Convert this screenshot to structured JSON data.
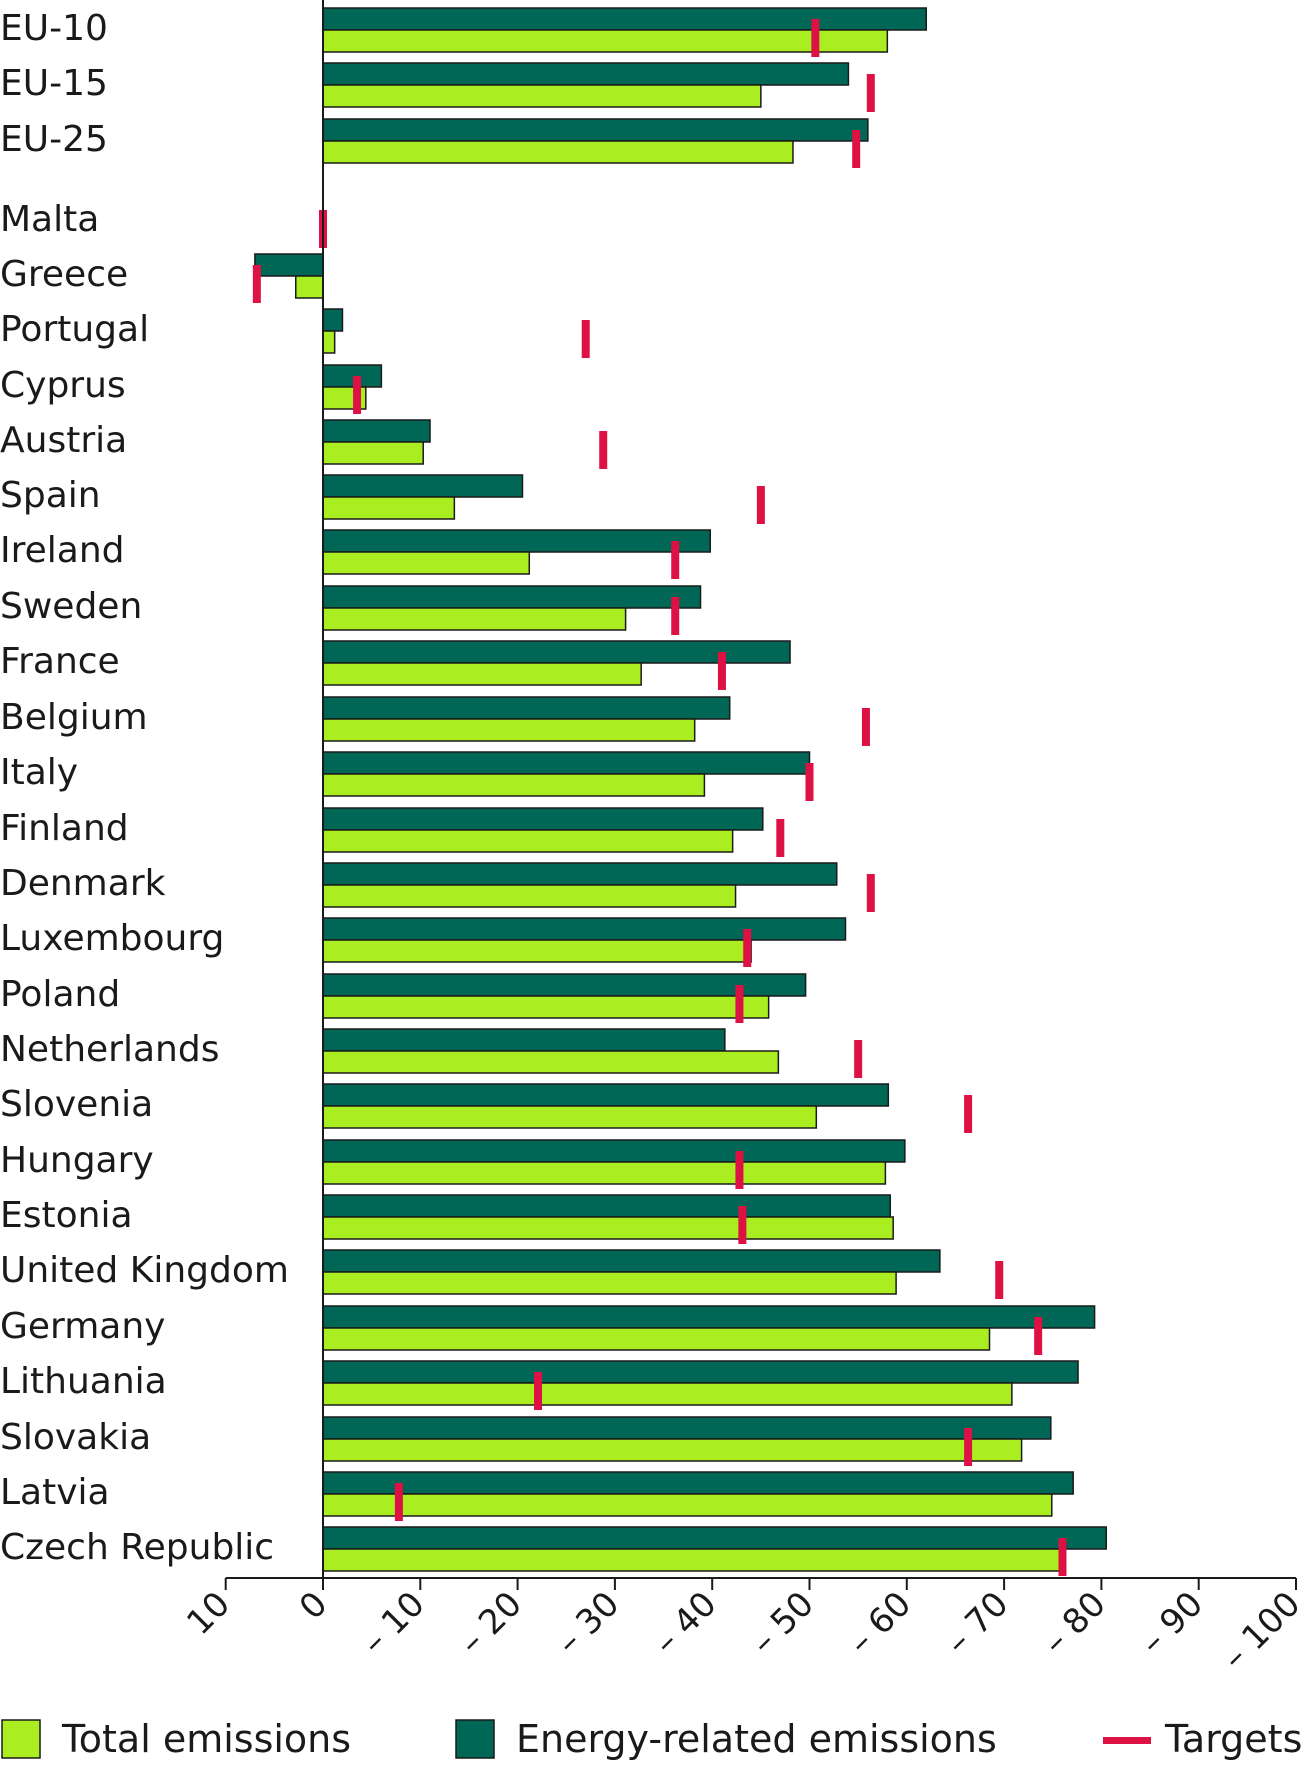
{
  "chart_data": {
    "type": "bar",
    "orientation": "horizontal",
    "x_axis_reversed": true,
    "xlim": [
      10,
      -100
    ],
    "ticks": [
      10,
      0,
      -10,
      -20,
      -30,
      -40,
      -50,
      -60,
      -70,
      -80,
      -90,
      -100
    ],
    "tick_labels": [
      "10",
      "0",
      "– 10",
      "– 20",
      "– 30",
      "– 40",
      "– 50",
      "– 60",
      "– 70",
      "– 80",
      "– 90",
      "– 100"
    ],
    "grid": false,
    "legend_position": "bottom",
    "categories": [
      "EU-10",
      "EU-15",
      "EU-25",
      "Malta",
      "Greece",
      "Portugal",
      "Cyprus",
      "Austria",
      "Spain",
      "Ireland",
      "Sweden",
      "France",
      "Belgium",
      "Italy",
      "Finland",
      "Denmark",
      "Luxembourg",
      "Poland",
      "Netherlands",
      "Slovenia",
      "Hungary",
      "Estonia",
      "United Kingdom",
      "Germany",
      "Lithuania",
      "Slovakia",
      "Latvia",
      "Czech Republic"
    ],
    "series": [
      {
        "name": "Energy-related emissions",
        "color": "#006655",
        "values": [
          -62,
          -54,
          -56,
          null,
          7,
          -2,
          -6,
          -11,
          -20.5,
          -39.8,
          -38.8,
          -48,
          -41.8,
          -50,
          -45.2,
          -52.8,
          -53.7,
          -49.6,
          -41.3,
          -58.1,
          -59.8,
          -58.3,
          -63.4,
          -79.3,
          -77.6,
          -74.8,
          -77.1,
          -80.5
        ]
      },
      {
        "name": "Total emissions",
        "color": "#aaee22",
        "values": [
          -58,
          -45,
          -48.3,
          null,
          2.8,
          -1.2,
          -4.4,
          -10.3,
          -13.5,
          -21.2,
          -31.1,
          -32.7,
          -38.2,
          -39.2,
          -42.1,
          -42.4,
          -44,
          -45.8,
          -46.8,
          -50.7,
          -57.8,
          -58.6,
          -58.9,
          -68.5,
          -70.8,
          -71.8,
          -74.9,
          -76.1
        ]
      }
    ],
    "targets": {
      "name": "Targets",
      "color": "#dd1144",
      "values": [
        -50.6,
        -56.3,
        -54.8,
        0,
        6.8,
        -27,
        -3.5,
        -28.8,
        -45,
        -36.2,
        -36.2,
        -41,
        -55.8,
        -50,
        -47,
        -56.3,
        -43.6,
        -42.8,
        -55,
        -66.3,
        -42.8,
        -43.1,
        -69.5,
        -73.5,
        -22.1,
        -66.3,
        -7.8,
        -76
      ]
    },
    "legend": [
      {
        "label": "Total emissions",
        "kind": "box",
        "color": "#aaee22"
      },
      {
        "label": "Energy-related emissions",
        "kind": "box",
        "color": "#006655"
      },
      {
        "label": "Targets",
        "kind": "line",
        "color": "#dd1144"
      }
    ]
  }
}
